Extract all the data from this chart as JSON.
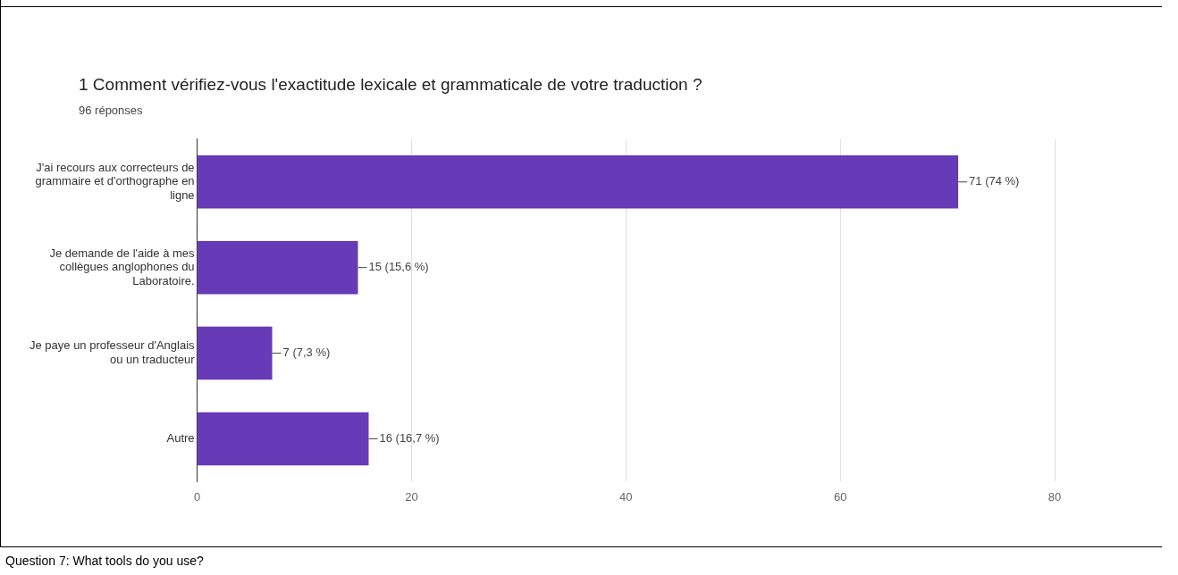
{
  "chart_data": {
    "type": "bar",
    "orientation": "horizontal",
    "title": "1 Comment vérifiez-vous l'exactitude lexicale et grammaticale de votre traduction ?",
    "subtitle": "96 réponses",
    "categories": [
      "J'ai recours aux correcteurs de grammaire et d'orthographe en ligne",
      "Je demande de l'aide à mes collègues anglophones du Laboratoire.",
      "Je paye un professeur d'Anglais ou un traducteur",
      "Autre"
    ],
    "values": [
      71,
      15,
      7,
      16
    ],
    "value_labels": [
      "71 (74 %)",
      "15 (15,6 %)",
      "7 (7,3 %)",
      "16 (16,7 %)"
    ],
    "color": "#673ab7",
    "xlim": [
      0,
      80
    ],
    "xticks": [
      0,
      20,
      40,
      60,
      80
    ],
    "grid": "x",
    "legend": false,
    "annotations": [
      "Question 7: What tools do you use?"
    ]
  }
}
